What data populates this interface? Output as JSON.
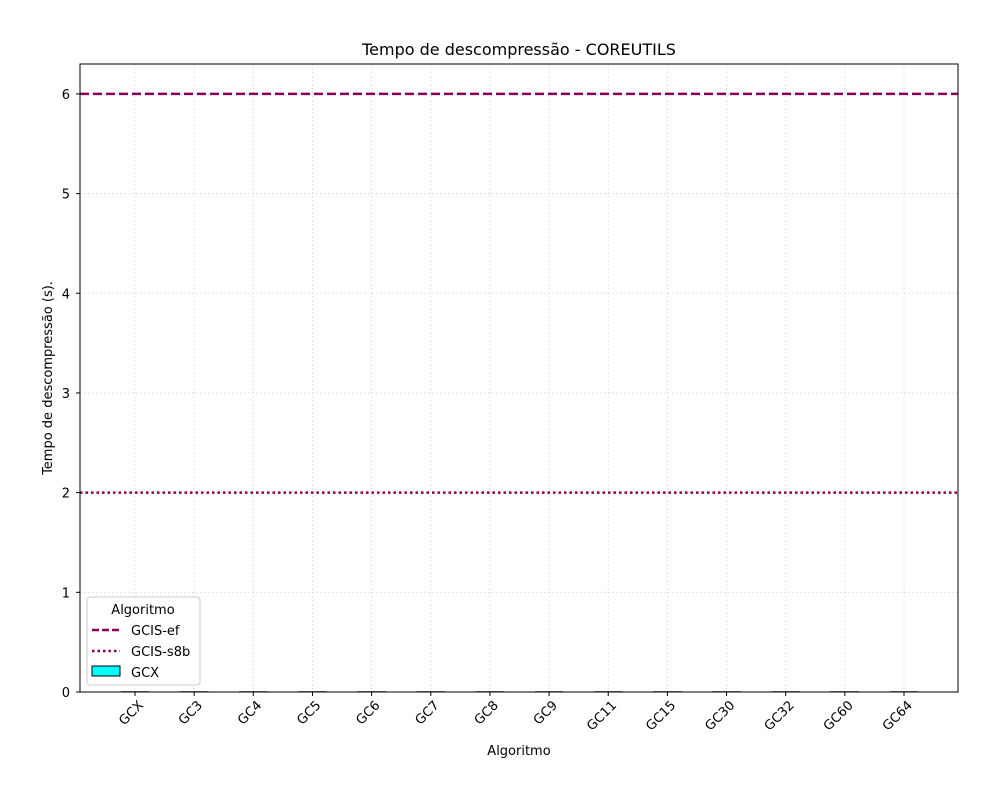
{
  "chart_data": {
    "type": "bar",
    "title": "Tempo de descompressão -  COREUTILS",
    "xlabel": "Algoritmo",
    "ylabel": "Tempo de descompressão (s).",
    "categories": [
      "GCX",
      "GC3",
      "GC4",
      "GC5",
      "GC6",
      "GC7",
      "GC8",
      "GC9",
      "GC11",
      "GC15",
      "GC30",
      "GC32",
      "GC60",
      "GC64"
    ],
    "series": [
      {
        "name": "GCX",
        "values": [
          0,
          0,
          0,
          0,
          0,
          0,
          0,
          0,
          0,
          0,
          0,
          0,
          0,
          0
        ],
        "color": "#00ffff"
      }
    ],
    "reference_lines": [
      {
        "name": "GCIS-ef",
        "value": 6.0,
        "style": "dashed",
        "color": "#8b0057"
      },
      {
        "name": "GCIS-s8b",
        "value": 2.0,
        "style": "dotted",
        "color": "#8b0057"
      }
    ],
    "ylim": [
      0,
      6.3
    ],
    "yticks": [
      0,
      1,
      2,
      3,
      4,
      5,
      6
    ],
    "grid": true,
    "legend": {
      "title": "Algoritmo",
      "placement": "lower-left"
    }
  }
}
